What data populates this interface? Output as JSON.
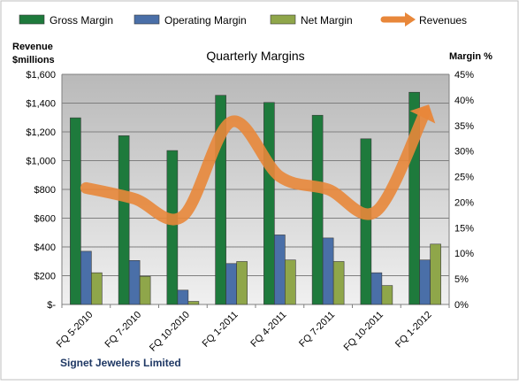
{
  "chart_data": {
    "type": "bar",
    "title": "Quarterly Margins",
    "company": "Signet Jewelers Limited",
    "ylabel_left": [
      "Revenue",
      "$millions"
    ],
    "ylabel_right": "Margin %",
    "categories": [
      "FQ 5-2010",
      "FQ 7-2010",
      "FQ 10-2010",
      "FQ 1-2011",
      "FQ 4-2011",
      "FQ 7-2011",
      "FQ 10-2011",
      "FQ 1-2012"
    ],
    "ylim_left": [
      0,
      1600
    ],
    "ylim_right": [
      0,
      45
    ],
    "left_ticks": [
      "$-",
      "$200",
      "$400",
      "$600",
      "$800",
      "$1,000",
      "$1,200",
      "$1,400",
      "$1,600"
    ],
    "right_ticks": [
      "0%",
      "5%",
      "10%",
      "15%",
      "20%",
      "25%",
      "30%",
      "35%",
      "40%",
      "45%"
    ],
    "series": [
      {
        "name": "Gross Margin",
        "axis": "right",
        "kind": "bar",
        "color": "#1e7a3c",
        "values": [
          36.5,
          33.0,
          30.1,
          40.9,
          39.5,
          37.0,
          32.4,
          41.5
        ]
      },
      {
        "name": "Operating Margin",
        "axis": "right",
        "kind": "bar",
        "color": "#4a6fa8",
        "values": [
          10.4,
          8.6,
          2.8,
          8.0,
          13.6,
          13.0,
          6.2,
          8.7
        ]
      },
      {
        "name": "Net Margin",
        "axis": "right",
        "kind": "bar",
        "color": "#8fa64a",
        "values": [
          6.2,
          5.5,
          0.6,
          8.4,
          8.7,
          8.4,
          3.7,
          11.8
        ]
      },
      {
        "name": "Revenues",
        "axis": "left",
        "kind": "line",
        "color": "#e8873a",
        "values": [
          810,
          735,
          615,
          1270,
          890,
          800,
          650,
          1335
        ]
      }
    ],
    "grid": true,
    "legend_position": "top"
  }
}
